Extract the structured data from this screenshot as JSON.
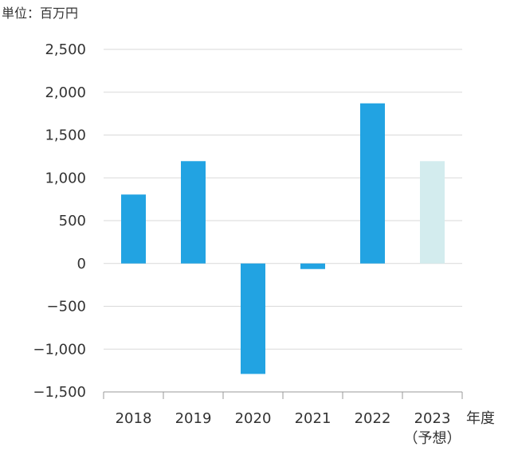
{
  "chart_data": {
    "type": "bar",
    "unit_label": "単位：百万円",
    "xlabel": "年度",
    "ylabel": "",
    "title": "",
    "ylim": [
      -1500,
      2500
    ],
    "y_ticks": [
      "2,500",
      "2,000",
      "1,500",
      "1,000",
      "500",
      "0",
      "−500",
      "−1,000",
      "−1,500"
    ],
    "y_tick_values": [
      2500,
      2000,
      1500,
      1000,
      500,
      0,
      -500,
      -1000,
      -1500
    ],
    "categories": [
      "2018",
      "2019",
      "2020",
      "2021",
      "2022",
      "2023"
    ],
    "category_sublabels": [
      "",
      "",
      "",
      "",
      "",
      "（予想）"
    ],
    "values": [
      805,
      1195,
      -1290,
      -65,
      1870,
      1195
    ],
    "forecast": [
      false,
      false,
      false,
      false,
      false,
      true
    ],
    "grid": true,
    "colors": {
      "actual": "#22a3e2",
      "forecast": "#d3ecee",
      "grid": "#d9d9d9",
      "axis": "#999999",
      "text": "#333333"
    }
  }
}
